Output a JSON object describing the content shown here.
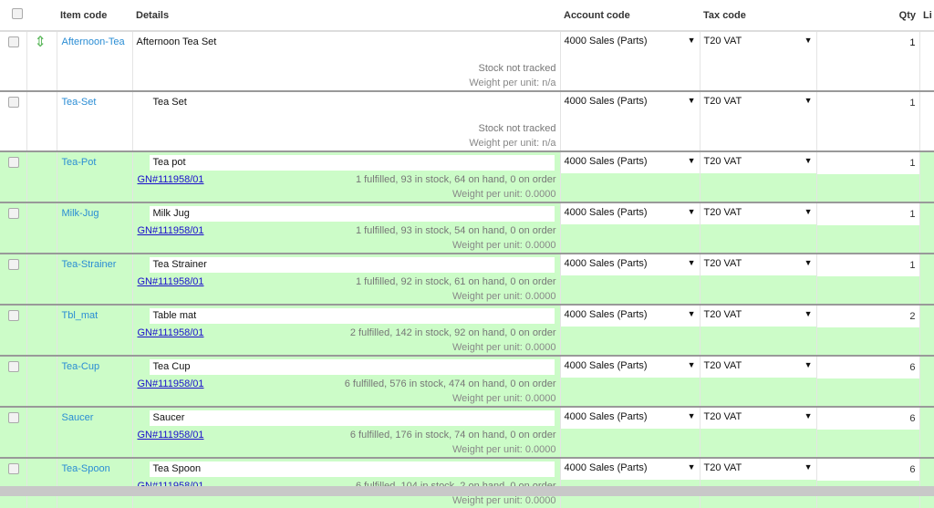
{
  "columns": {
    "item_code": "Item code",
    "details": "Details",
    "account_code": "Account code",
    "tax_code": "Tax code",
    "qty": "Qty",
    "list": "Li"
  },
  "rows": [
    {
      "code": "Afternoon-Tea",
      "description": "Afternoon Tea Set",
      "link": "",
      "stock": "Stock not tracked",
      "weight": "Weight per unit: n/a",
      "account": "4000 Sales (Parts)",
      "tax": "T20 VAT",
      "qty": "1",
      "green": false,
      "drag": true
    },
    {
      "code": "Tea-Set",
      "description": "Tea Set",
      "link": "",
      "stock": "Stock not tracked",
      "weight": "Weight per unit: n/a",
      "account": "4000 Sales (Parts)",
      "tax": "T20 VAT",
      "qty": "1",
      "green": false
    },
    {
      "code": "Tea-Pot",
      "description": "Tea pot",
      "link": "GN#111958/01",
      "stock": "1 fulfilled, 93 in stock, 64 on hand, 0 on order",
      "weight": "Weight per unit: 0.0000",
      "account": "4000 Sales (Parts)",
      "tax": "T20 VAT",
      "qty": "1",
      "green": true
    },
    {
      "code": "Milk-Jug",
      "description": "Milk Jug",
      "link": "GN#111958/01",
      "stock": "1 fulfilled, 93 in stock, 54 on hand, 0 on order",
      "weight": "Weight per unit: 0.0000",
      "account": "4000 Sales (Parts)",
      "tax": "T20 VAT",
      "qty": "1",
      "green": true
    },
    {
      "code": "Tea-Strainer",
      "description": "Tea Strainer",
      "link": "GN#111958/01",
      "stock": "1 fulfilled, 92 in stock, 61 on hand, 0 on order",
      "weight": "Weight per unit: 0.0000",
      "account": "4000 Sales (Parts)",
      "tax": "T20 VAT",
      "qty": "1",
      "green": true
    },
    {
      "code": "Tbl_mat",
      "description": "Table mat",
      "link": "GN#111958/01",
      "stock": "2 fulfilled, 142 in stock, 92 on hand, 0 on order",
      "weight": "Weight per unit: 0.0000",
      "account": "4000 Sales (Parts)",
      "tax": "T20 VAT",
      "qty": "2",
      "green": true
    },
    {
      "code": "Tea-Cup",
      "description": "Tea Cup",
      "link": "GN#111958/01",
      "stock": "6 fulfilled, 576 in stock, 474 on hand, 0 on order",
      "weight": "Weight per unit: 0.0000",
      "account": "4000 Sales (Parts)",
      "tax": "T20 VAT",
      "qty": "6",
      "green": true
    },
    {
      "code": "Saucer",
      "description": "Saucer",
      "link": "GN#111958/01",
      "stock": "6 fulfilled, 176 in stock, 74 on hand, 0 on order",
      "weight": "Weight per unit: 0.0000",
      "account": "4000 Sales (Parts)",
      "tax": "T20 VAT",
      "qty": "6",
      "green": true
    },
    {
      "code": "Tea-Spoon",
      "description": "Tea Spoon",
      "link": "GN#111958/01",
      "stock": "6 fulfilled, 104 in stock, 2 on hand, 0 on order",
      "weight": "Weight per unit: 0.0000",
      "account": "4000 Sales (Parts)",
      "tax": "T20 VAT",
      "qty": "6",
      "green": true
    }
  ],
  "colors": {
    "link": "#2a8dd4",
    "fulfilled_row": "#ccfcc8"
  },
  "icons": {
    "drag": "drag-handle-icon",
    "dropdown": "caret-down-icon"
  }
}
